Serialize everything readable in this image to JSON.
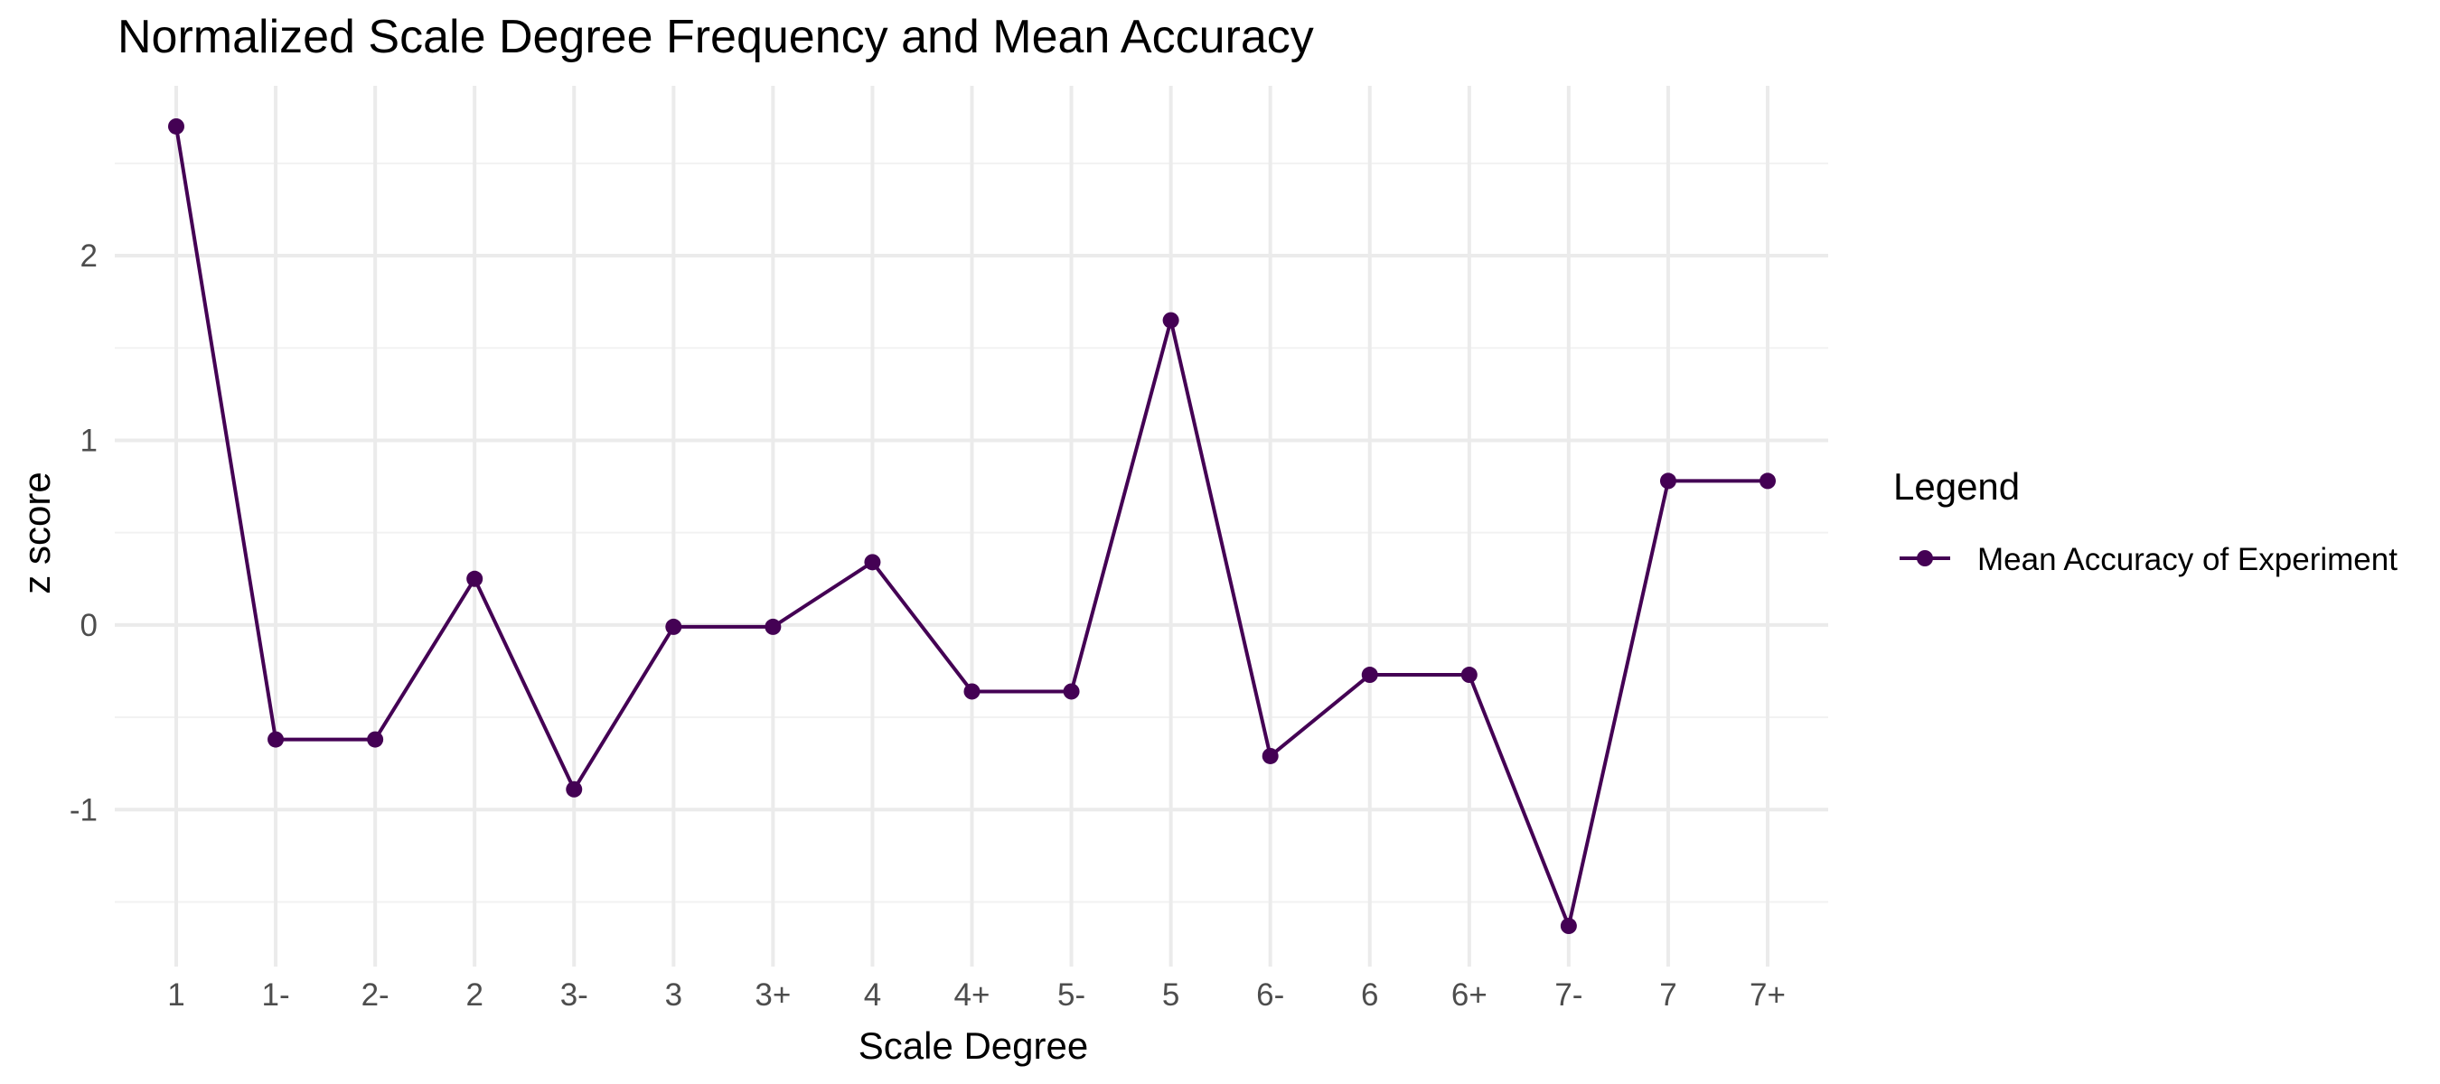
{
  "chart_data": {
    "type": "line",
    "title": "Normalized Scale Degree Frequency and Mean Accuracy",
    "xlabel": "Scale Degree",
    "ylabel": "z score",
    "categories": [
      "1",
      "1-",
      "2-",
      "2",
      "3-",
      "3",
      "3+",
      "4",
      "4+",
      "5-",
      "5",
      "6-",
      "6",
      "6+",
      "7-",
      "7",
      "7+"
    ],
    "series": [
      {
        "name": "Mean Accuracy of Experiment",
        "color": "#440154",
        "values": [
          2.7,
          -0.62,
          -0.62,
          0.25,
          -0.89,
          -0.01,
          -0.01,
          0.34,
          -0.36,
          -0.36,
          1.65,
          -0.71,
          -0.27,
          -0.27,
          -1.63,
          0.78,
          0.78
        ]
      }
    ],
    "ylim": [
      -1.85,
      2.92
    ],
    "yticks": [
      -1,
      0,
      1,
      2
    ],
    "ytick_labels": [
      "-1",
      "0",
      "1",
      "2"
    ],
    "grid": true,
    "legend": {
      "title": "Legend",
      "position": "right"
    }
  }
}
